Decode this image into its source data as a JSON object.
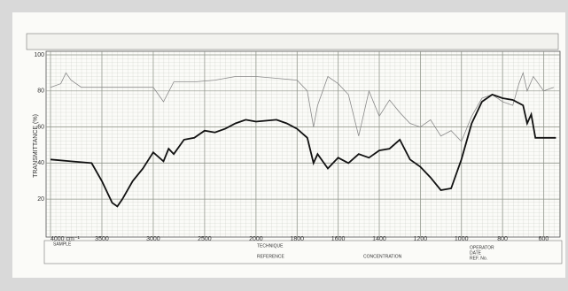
{
  "chart_data": {
    "type": "line",
    "y_label": "TRANSMITTANCE (%)",
    "xlim": [
      4000,
      520
    ],
    "x_scale_break": 2000,
    "xticks": [
      {
        "value": 4000,
        "label": "4000 cm⁻¹"
      },
      3500,
      3000,
      2500,
      2000,
      1800,
      1600,
      1400,
      1200,
      1000,
      800,
      600
    ],
    "ylim": [
      0,
      100
    ],
    "yticks": [
      100,
      80,
      60,
      40,
      20
    ],
    "grid": true,
    "series": [
      {
        "color": "#8a8a8a",
        "x": [
          4000,
          3900,
          3850,
          3800,
          3700,
          3600,
          3400,
          3200,
          3000,
          2900,
          2800,
          2600,
          2400,
          2200,
          2000,
          1900,
          1800,
          1750,
          1720,
          1700,
          1650,
          1600,
          1550,
          1500,
          1450,
          1400,
          1350,
          1300,
          1250,
          1200,
          1150,
          1100,
          1050,
          1000,
          950,
          900,
          850,
          800,
          750,
          720,
          700,
          680,
          650,
          600,
          550
        ],
        "values": [
          82,
          84,
          90,
          86,
          82,
          82,
          82,
          82,
          82,
          74,
          85,
          85,
          86,
          88,
          88,
          87,
          86,
          80,
          60,
          72,
          88,
          84,
          78,
          55,
          80,
          66,
          75,
          68,
          62,
          60,
          64,
          55,
          58,
          52,
          66,
          76,
          78,
          74,
          72,
          84,
          90,
          80,
          88,
          80,
          82
        ]
      },
      {
        "color": "#111111",
        "x": [
          4000,
          3800,
          3600,
          3500,
          3400,
          3350,
          3300,
          3200,
          3100,
          3000,
          2900,
          2850,
          2800,
          2700,
          2600,
          2500,
          2400,
          2300,
          2200,
          2100,
          2000,
          1900,
          1850,
          1800,
          1750,
          1720,
          1700,
          1650,
          1600,
          1550,
          1500,
          1450,
          1400,
          1350,
          1300,
          1250,
          1200,
          1150,
          1100,
          1050,
          1000,
          950,
          900,
          850,
          800,
          750,
          700,
          680,
          660,
          640,
          600,
          540
        ],
        "values": [
          42,
          41,
          40,
          30,
          18,
          16,
          20,
          30,
          37,
          46,
          41,
          48,
          45,
          53,
          54,
          58,
          57,
          59,
          62,
          64,
          63,
          64,
          62,
          59,
          54,
          40,
          45,
          37,
          43,
          40,
          45,
          43,
          47,
          48,
          53,
          42,
          38,
          32,
          25,
          26,
          42,
          62,
          74,
          78,
          76,
          75,
          72,
          62,
          67,
          54,
          54,
          54
        ]
      }
    ]
  },
  "form": {
    "fields": [
      "SAMPLE",
      "TECHNIQUE",
      "REFERENCE",
      "CONCENTRATION",
      "OPERATOR",
      "DATE",
      "REF. No."
    ]
  }
}
